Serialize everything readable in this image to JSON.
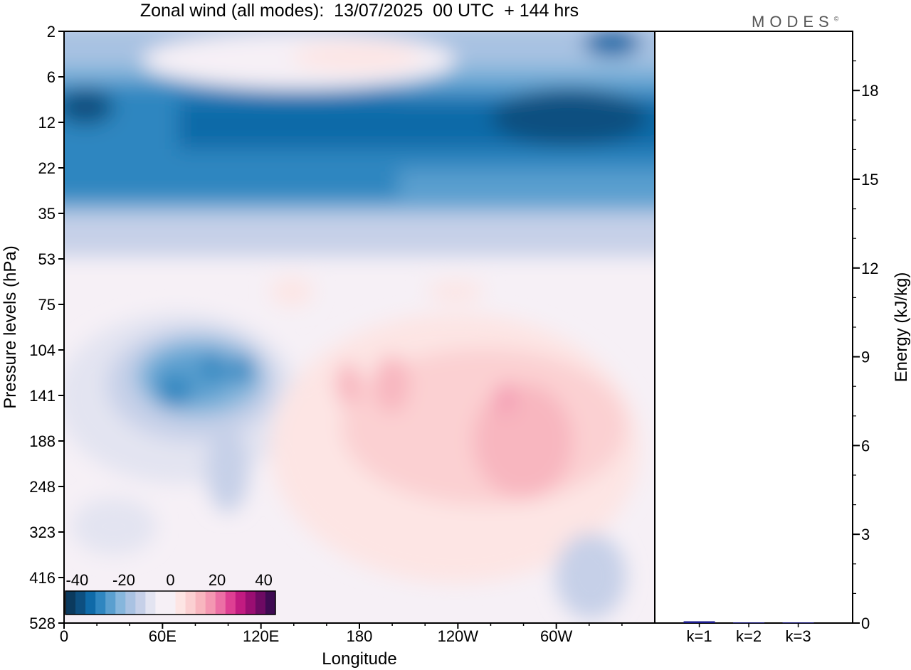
{
  "title": "Zonal wind (all modes):  13/07/2025  00 UTC  + 144 hrs",
  "brand": "MODES",
  "brand_mark": "©",
  "colors": {
    "negative_scale": [
      "#0b3a5e",
      "#0d4f80",
      "#0f6aa8",
      "#2f86c0",
      "#5a9fcf",
      "#86b6dc",
      "#a9c2e2",
      "#c6d0e8",
      "#e3e4f1"
    ],
    "neutral": "#f6f0f6",
    "positive_scale": [
      "#fde5e4",
      "#fbd0d2",
      "#f8b6bf",
      "#f497b2",
      "#ec6fa5",
      "#de3f93",
      "#c21b81",
      "#9a0e72",
      "#6d0a63",
      "#3e0a52"
    ]
  },
  "chart_data": [
    {
      "type": "heatmap",
      "title": "Zonal wind (all modes):  13/07/2025  00 UTC  + 144 hrs",
      "xlabel": "Longitude",
      "ylabel": "Pressure levels (hPa)",
      "x_ticks": [
        "0",
        "60E",
        "120E",
        "180",
        "120W",
        "60W"
      ],
      "x_tick_values": [
        0,
        60,
        120,
        180,
        240,
        300
      ],
      "xlim": [
        0,
        360
      ],
      "y_ticks": [
        "2",
        "6",
        "12",
        "22",
        "35",
        "53",
        "75",
        "104",
        "141",
        "188",
        "248",
        "323",
        "416",
        "528"
      ],
      "colorbar": {
        "ticks": [
          "-40",
          "-20",
          "0",
          "20",
          "40"
        ],
        "min": -45,
        "max": 45,
        "step": 5
      },
      "features": [
        {
          "lon": 0,
          "level": 2,
          "value": -20
        },
        {
          "lon": 330,
          "level": 2,
          "value": -30
        },
        {
          "lon": 180,
          "level": 2,
          "value": 3
        },
        {
          "lon": 285,
          "level": 12,
          "value": -40
        },
        {
          "lon": 20,
          "level": 12,
          "value": -35
        },
        {
          "lon": 90,
          "level": 22,
          "value": -25
        },
        {
          "lon": 180,
          "level": 35,
          "value": -15
        },
        {
          "lon": 75,
          "level": 141,
          "value": -25
        },
        {
          "lon": 105,
          "level": 141,
          "value": -20
        },
        {
          "lon": 170,
          "level": 141,
          "value": 10
        },
        {
          "lon": 265,
          "level": 141,
          "value": 15
        },
        {
          "lon": 270,
          "level": 248,
          "value": 10
        },
        {
          "lon": 320,
          "level": 416,
          "value": -8
        },
        {
          "lon": 180,
          "level": 75,
          "value": 2
        }
      ]
    },
    {
      "type": "bar",
      "categories": [
        "k=1",
        "k=2",
        "k=3"
      ],
      "values": [
        0.06,
        0.02,
        0.02
      ],
      "ylabel": "Energy (kJ/kg)",
      "ylim": [
        0,
        20
      ],
      "y_ticks": [
        "0",
        "3",
        "6",
        "9",
        "12",
        "15",
        "18"
      ],
      "y_tick_values": [
        0,
        3,
        6,
        9,
        12,
        15,
        18
      ],
      "bar_color": "#1a1a8c"
    }
  ]
}
